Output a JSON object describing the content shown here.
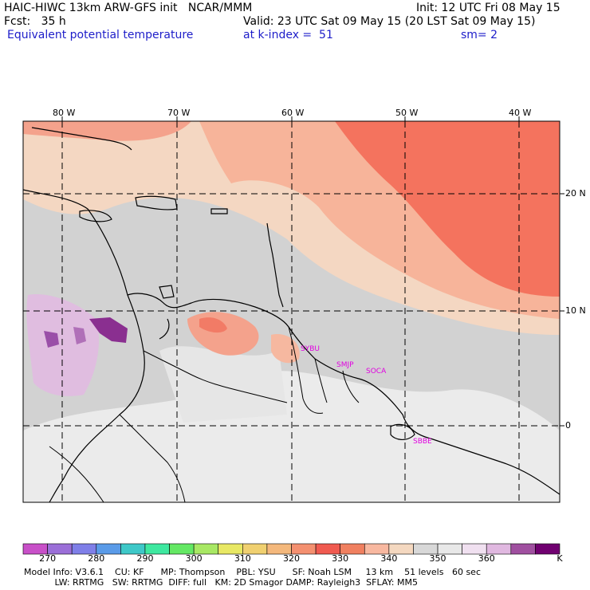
{
  "header": {
    "line1_left": "HAIC-HIWC 13km ARW-GFS init   NCAR/MMM",
    "line1_right": "Init: 12 UTC Fri 08 May 15",
    "line2_left": "Fcst:   35 h",
    "line2_right": "Valid: 23 UTC Sat 09 May 15 (20 LST Sat 09 May 15)",
    "line3_left": "Equivalent potential temperature",
    "line3_mid": "at k-index =  51",
    "line3_right": "sm= 2"
  },
  "map": {
    "lon_labels": [
      "80 W",
      "70 W",
      "60 W",
      "50 W",
      "40 W"
    ],
    "lat_labels": [
      "20 N",
      "10 N",
      "0"
    ],
    "stations": [
      "SYBU",
      "SMJP",
      "SOCA",
      "SBBE"
    ]
  },
  "colorbar": {
    "colors": [
      "#c850c8",
      "#9b6fd8",
      "#7f7fe8",
      "#5a9be8",
      "#3ec8c8",
      "#3ee8a0",
      "#64e864",
      "#a8e864",
      "#e8e864",
      "#f0d070",
      "#f4b87c",
      "#f49070",
      "#f05a50",
      "#f08060",
      "#f8b8a0",
      "#f4d8c0",
      "#d8d8d8",
      "#e8e8e8",
      "#f0e0f0",
      "#e0b8e0",
      "#a050a0",
      "#700070"
    ],
    "tick_labels": [
      "270",
      "280",
      "290",
      "300",
      "310",
      "320",
      "330",
      "340",
      "350",
      "360"
    ],
    "unit": "K"
  },
  "footer": {
    "line1": "Model Info: V3.6.1    CU: KF      MP: Thompson    PBL: YSU      SF: Noah LSM     13 km    51 levels   60 sec",
    "line2": "           LW: RRTMG   SW: RRTMG  DIFF: full   KM: 2D Smagor DAMP: Rayleigh3  SFLAY: MM5"
  }
}
